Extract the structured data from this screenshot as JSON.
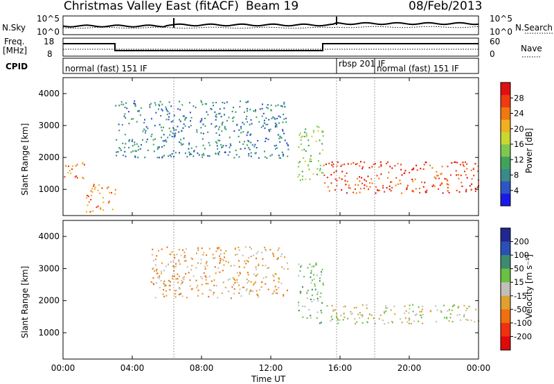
{
  "header": {
    "title": "Christmas Valley East (fitACF)",
    "beam": "Beam 19",
    "date": "08/Feb/2013"
  },
  "nsky_panel": {
    "left_label": "N.Sky",
    "right_label": "N.Search",
    "left_ticks": [
      "10^5",
      "10^0"
    ],
    "right_ticks": [
      "10^5",
      "10^0"
    ]
  },
  "freq_panel": {
    "left_label_line1": "Freq.",
    "left_label_line2": "[MHz]",
    "right_label": "Nave",
    "left_ticks": [
      "18",
      "8"
    ],
    "right_ticks": [
      "60",
      "0"
    ]
  },
  "cpid_panel": {
    "label": "CPID",
    "segments": [
      {
        "text": "normal (fast) 151 IF",
        "start_hour": 0.0
      },
      {
        "text": "rbsp 201 IF",
        "start_hour": 15.8
      },
      {
        "text": "normal (fast) 151 IF",
        "start_hour": 17.6
      }
    ]
  },
  "x_axis": {
    "label": "Time UT",
    "ticks": [
      "00:00",
      "04:00",
      "08:00",
      "12:00",
      "16:00",
      "20:00",
      "00:00"
    ],
    "range_hours": [
      0,
      24
    ]
  },
  "y_axis": {
    "label": "Slant Range [km]",
    "ticks": [
      "1000",
      "2000",
      "3000",
      "4000"
    ],
    "range_km": [
      180,
      4500
    ]
  },
  "power_colorbar": {
    "label": "Power [dB]",
    "ticks": [
      "4",
      "8",
      "12",
      "16",
      "20",
      "24",
      "28"
    ],
    "colors": [
      "#1a1ae6",
      "#2e55c8",
      "#3a8a8a",
      "#3fa35a",
      "#7ec850",
      "#c8d830",
      "#f0b020",
      "#f07810",
      "#f03a10",
      "#e01010"
    ]
  },
  "velocity_colorbar": {
    "label": "Velocity [m s⁻¹]",
    "ticks": [
      "200",
      "100",
      "50",
      "15",
      "-15",
      "-50",
      "-100",
      "-200"
    ],
    "colors": [
      "#202890",
      "#2a50b8",
      "#3d8a70",
      "#6ac040",
      "#c0c0b8",
      "#e0a030",
      "#f07010",
      "#f03010",
      "#e00a0a"
    ]
  },
  "chart_data": [
    {
      "type": "heatmap",
      "title": "Power",
      "xlabel": "Time UT",
      "ylabel": "Slant Range [km]",
      "xlim": [
        0,
        24
      ],
      "ylim": [
        180,
        4500
      ],
      "colorbar": {
        "label": "Power [dB]",
        "range": [
          0,
          30
        ]
      },
      "features": [
        {
          "name": "near-range echo band",
          "t_start": 0.0,
          "t_end": 1.3,
          "range_km": [
            1350,
            1900
          ],
          "power_db": 22
        },
        {
          "name": "near-range echo patch",
          "t_start": 1.3,
          "t_end": 3.0,
          "range_km": [
            300,
            1200
          ],
          "power_db": 24
        },
        {
          "name": "far-range arc",
          "t_start": 3.0,
          "t_end": 13.0,
          "range_km": [
            2000,
            3800
          ],
          "power_db": 8
        },
        {
          "name": "descending trace",
          "t_start": 13.5,
          "t_end": 15.0,
          "range_km": [
            1300,
            3000
          ],
          "power_db": 14
        },
        {
          "name": "afternoon strong band",
          "t_start": 15.0,
          "t_end": 24.0,
          "range_km": [
            900,
            1900
          ],
          "power_db": 28
        }
      ]
    },
    {
      "type": "heatmap",
      "title": "Velocity",
      "xlabel": "Time UT",
      "ylabel": "Slant Range [km]",
      "xlim": [
        0,
        24
      ],
      "ylim": [
        180,
        4500
      ],
      "colorbar": {
        "label": "Velocity [m s⁻¹]",
        "range": [
          -200,
          200
        ]
      },
      "features": [
        {
          "name": "ground scatter band",
          "t_start": 15.0,
          "t_end": 24.0,
          "range_km": [
            1300,
            1900
          ],
          "velocity": 0
        },
        {
          "name": "far-range arc",
          "t_start": 5.0,
          "t_end": 13.0,
          "range_km": [
            2100,
            3700
          ],
          "velocity": -30
        },
        {
          "name": "positive velocity trace",
          "t_start": 13.5,
          "t_end": 15.0,
          "range_km": [
            1300,
            3200
          ],
          "velocity": 40
        }
      ]
    }
  ]
}
